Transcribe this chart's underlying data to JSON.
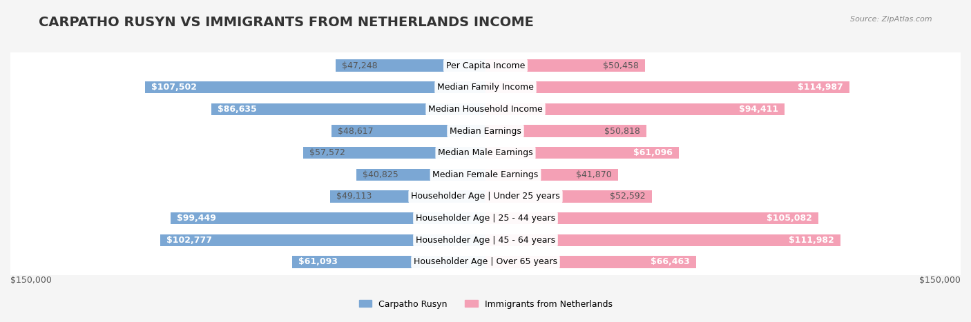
{
  "title": "CARPATHO RUSYN VS IMMIGRANTS FROM NETHERLANDS INCOME",
  "source": "Source: ZipAtlas.com",
  "categories": [
    "Per Capita Income",
    "Median Family Income",
    "Median Household Income",
    "Median Earnings",
    "Median Male Earnings",
    "Median Female Earnings",
    "Householder Age | Under 25 years",
    "Householder Age | 25 - 44 years",
    "Householder Age | 45 - 64 years",
    "Householder Age | Over 65 years"
  ],
  "left_values": [
    47248,
    107502,
    86635,
    48617,
    57572,
    40825,
    49113,
    99449,
    102777,
    61093
  ],
  "right_values": [
    50458,
    114987,
    94411,
    50818,
    61096,
    41870,
    52592,
    105082,
    111982,
    66463
  ],
  "left_labels": [
    "$47,248",
    "$107,502",
    "$86,635",
    "$48,617",
    "$57,572",
    "$40,825",
    "$49,113",
    "$99,449",
    "$102,777",
    "$61,093"
  ],
  "right_labels": [
    "$50,458",
    "$114,987",
    "$94,411",
    "$50,818",
    "$61,096",
    "$41,870",
    "$52,592",
    "$105,082",
    "$111,982",
    "$66,463"
  ],
  "left_color": "#7ba7d4",
  "right_color": "#f4a0b5",
  "left_label_dark": "#5a7fa8",
  "right_label_dark": "#c0607a",
  "max_value": 150000,
  "x_tick_label_left": "$150,000",
  "x_tick_label_right": "$150,000",
  "legend_left": "Carpatho Rusyn",
  "legend_right": "Immigrants from Netherlands",
  "background_color": "#f5f5f5",
  "row_background": "#ececec",
  "title_fontsize": 14,
  "label_fontsize": 9,
  "category_fontsize": 9
}
